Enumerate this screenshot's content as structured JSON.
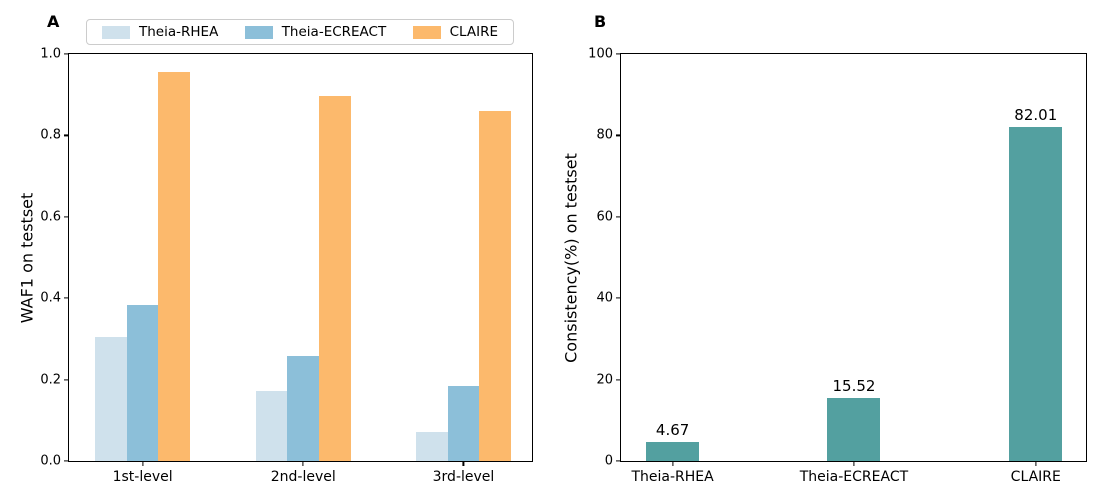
{
  "chart_data": [
    {
      "type": "bar",
      "panel_label": "A",
      "categories": [
        "1st-level",
        "2nd-level",
        "3rd-level"
      ],
      "series": [
        {
          "name": "Theia-RHEA",
          "color": "#cfe1ec",
          "values": [
            0.305,
            0.172,
            0.071
          ]
        },
        {
          "name": "Theia-ECREACT",
          "color": "#8cbfd9",
          "values": [
            0.383,
            0.258,
            0.184
          ]
        },
        {
          "name": "CLAIRE",
          "color": "#fcb96c",
          "values": [
            0.957,
            0.896,
            0.859
          ]
        }
      ],
      "xlabel": "",
      "ylabel": "WAF1 on testset",
      "ylim": [
        0,
        1.0
      ],
      "yticks": [
        0,
        0.2,
        0.4,
        0.6,
        0.8,
        1.0
      ],
      "ytick_labels": [
        "0.0",
        "0.2",
        "0.4",
        "0.6",
        "0.8",
        "1.0"
      ],
      "grid": false,
      "legend_position": "top"
    },
    {
      "type": "bar",
      "panel_label": "B",
      "categories": [
        "Theia-RHEA",
        "Theia-ECREACT",
        "CLAIRE"
      ],
      "values": [
        4.67,
        15.52,
        82.01
      ],
      "bar_labels": [
        "4.67",
        "15.52",
        "82.01"
      ],
      "bar_color": "#53a0a0",
      "xlabel": "",
      "ylabel": "Consistency(%) on testset",
      "ylim": [
        0,
        100
      ],
      "yticks": [
        0,
        20,
        40,
        60,
        80,
        100
      ],
      "ytick_labels": [
        "0",
        "20",
        "40",
        "60",
        "80",
        "100"
      ],
      "grid": false,
      "legend_position": "none"
    }
  ]
}
